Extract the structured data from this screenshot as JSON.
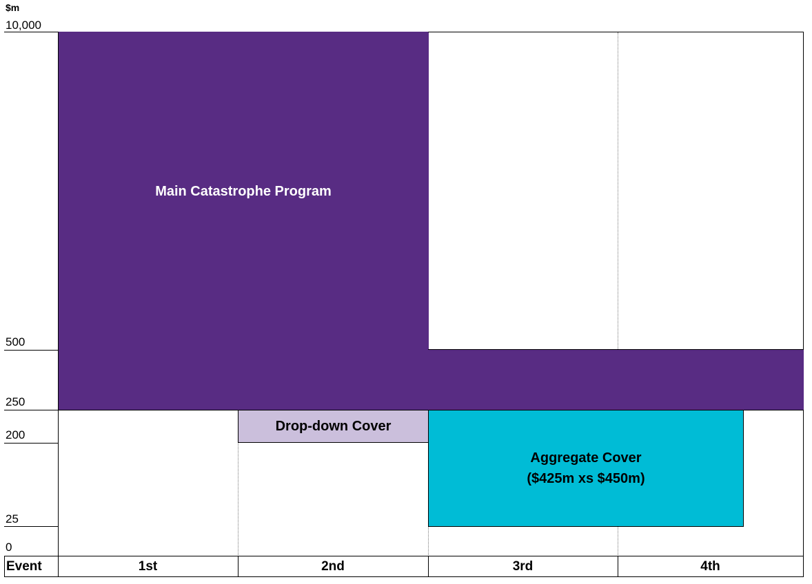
{
  "unit_label": "$m",
  "y_ticks": [
    {
      "value": "10,000"
    },
    {
      "value": "500"
    },
    {
      "value": "250"
    },
    {
      "value": "200"
    },
    {
      "value": "25"
    },
    {
      "value": "0"
    }
  ],
  "x_axis": {
    "header": "Event",
    "events": [
      "1st",
      "2nd",
      "3rd",
      "4th"
    ]
  },
  "blocks": {
    "main_program": {
      "label": "Main Catastrophe Program",
      "color": "#582c83"
    },
    "dropdown": {
      "label": "Drop-down Cover",
      "color": "#cbbfdc"
    },
    "aggregate": {
      "label_line1": "Aggregate Cover",
      "label_line2": "($425m xs $450m)",
      "color": "#00bcd6"
    }
  }
}
